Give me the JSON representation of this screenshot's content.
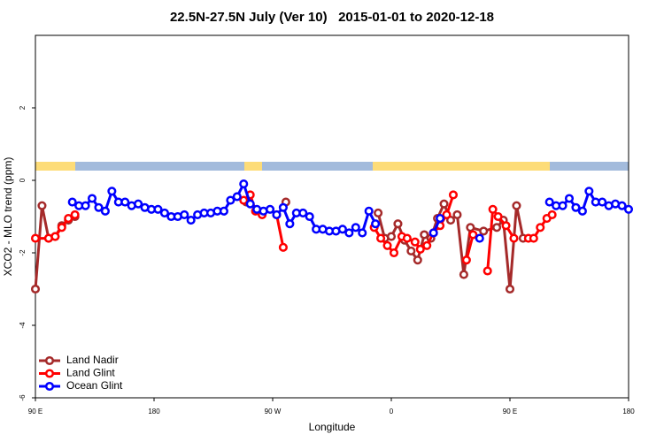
{
  "chart_data": {
    "type": "line",
    "title": "22.5N-27.5N July (Ver 10)   2015-01-01 to 2020-12-18",
    "x_label": "Longitude",
    "y_label": "XCO2 - MLO trend (ppm)",
    "xlim": [
      90,
      540
    ],
    "ylim": [
      -6,
      4
    ],
    "xticks": [
      {
        "value": 90,
        "label": "90 E"
      },
      180,
      {
        "value": 270,
        "label": "90 W"
      },
      {
        "value": 360,
        "label": "0"
      },
      {
        "value": 450,
        "label": "90 E"
      },
      {
        "value": 540,
        "label": "180"
      }
    ],
    "yticks": [
      -6,
      -4,
      -2,
      0,
      2
    ],
    "legend": "bottom-left",
    "series": [
      {
        "name": "Land Nadir",
        "color": "#a52a2a",
        "x": [
          90,
          95,
          100,
          105,
          110,
          115,
          120,
          125,
          250,
          255,
          280,
          285,
          350,
          355,
          360,
          365,
          370,
          375,
          380,
          385,
          390,
          395,
          400,
          405,
          410,
          415,
          420,
          430,
          440,
          445,
          450,
          455,
          460
        ],
        "values": [
          -3.0,
          -0.7,
          -1.6,
          -1.55,
          -1.25,
          -1.1,
          -1.0,
          null,
          -0.6,
          null,
          -0.6,
          null,
          -0.9,
          -1.6,
          -1.55,
          -1.2,
          -1.65,
          -1.95,
          -2.2,
          -1.5,
          -1.6,
          -1.05,
          -0.65,
          -1.1,
          -0.95,
          -2.6,
          -1.3,
          -1.4,
          -1.3,
          -1.1,
          -3.0,
          -0.7,
          -1.6
        ]
      },
      {
        "name": "Land Glint",
        "color": "#ff0000",
        "x": [
          90,
          100,
          105,
          110,
          115,
          120,
          125,
          248,
          253,
          257,
          262,
          265,
          273,
          278,
          280,
          347,
          352,
          357,
          362,
          368,
          372,
          378,
          382,
          387,
          392,
          397,
          402,
          407,
          410,
          417,
          422,
          425,
          433,
          437,
          441,
          447,
          453,
          456,
          464,
          468,
          473,
          478,
          482
        ],
        "values": [
          -1.6,
          -1.6,
          -1.55,
          -1.3,
          -1.05,
          -0.95,
          null,
          -0.55,
          -0.4,
          -0.85,
          -0.95,
          null,
          -0.95,
          -1.85,
          null,
          -1.3,
          -1.6,
          -1.8,
          -2.0,
          -1.55,
          -1.6,
          -1.7,
          -1.9,
          -1.8,
          -1.45,
          -1.25,
          -0.95,
          -0.4,
          null,
          -2.2,
          -1.5,
          null,
          -2.5,
          -0.8,
          -1.0,
          -1.25,
          -1.6,
          null,
          -1.6,
          -1.6,
          -1.3,
          -1.05,
          -0.95
        ]
      },
      {
        "name": "Ocean Glint",
        "color": "#0000ff",
        "x": [
          118,
          123,
          128,
          133,
          138,
          143,
          148,
          153,
          158,
          163,
          168,
          173,
          178,
          183,
          188,
          193,
          198,
          203,
          208,
          213,
          218,
          223,
          228,
          233,
          238,
          243,
          248,
          253,
          258,
          263,
          268,
          273,
          278,
          283,
          288,
          293,
          298,
          303,
          308,
          313,
          318,
          323,
          328,
          333,
          338,
          343,
          348,
          353,
          392,
          397,
          400,
          427,
          430,
          480,
          485,
          490,
          495,
          500,
          505,
          510,
          515,
          520,
          525,
          530,
          535,
          540
        ],
        "values": [
          -0.6,
          -0.7,
          -0.7,
          -0.5,
          -0.75,
          -0.85,
          -0.3,
          -0.6,
          -0.6,
          -0.7,
          -0.65,
          -0.75,
          -0.8,
          -0.8,
          -0.9,
          -1.0,
          -1.0,
          -0.95,
          -1.1,
          -0.95,
          -0.9,
          -0.9,
          -0.85,
          -0.85,
          -0.55,
          -0.45,
          -0.1,
          -0.65,
          -0.8,
          -0.85,
          -0.8,
          -0.95,
          -0.75,
          -1.2,
          -0.9,
          -0.9,
          -1.0,
          -1.35,
          -1.35,
          -1.4,
          -1.4,
          -1.35,
          -1.45,
          -1.3,
          -1.45,
          -0.85,
          -1.2,
          null,
          -1.45,
          -1.05,
          null,
          -1.6,
          null,
          -0.6,
          -0.7,
          -0.7,
          -0.5,
          -0.75,
          -0.85,
          -0.3,
          -0.6,
          -0.6,
          -0.7,
          -0.65,
          -0.7,
          -0.8
        ]
      }
    ]
  }
}
